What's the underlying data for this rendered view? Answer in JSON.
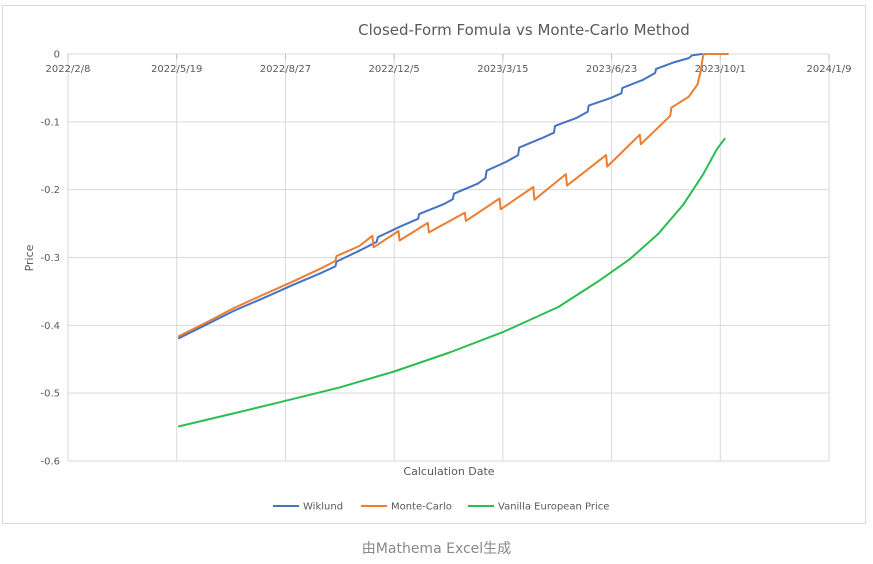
{
  "caption": "由Mathema Excel生成",
  "colors": {
    "Wiklund": "#4472c4",
    "Monte-Carlo": "#ed7d31",
    "Vanilla European Price": "#2bbd4f",
    "grid": "#d9d9d9",
    "text": "#595959"
  },
  "chart_data": {
    "type": "line",
    "title": "Closed-Form Fomula vs Monte-Carlo Method",
    "xlabel": "Calculation Date",
    "ylabel": "Price",
    "x_axis": {
      "type": "date",
      "ticks": [
        "2022/2/8",
        "2022/5/19",
        "2022/8/27",
        "2022/12/5",
        "2023/3/15",
        "2023/6/23",
        "2023/10/1",
        "2024/1/9"
      ],
      "range": [
        "2022/2/8",
        "2024/1/9"
      ],
      "position": "top"
    },
    "ylim": [
      -0.6,
      0
    ],
    "yticks": [
      0,
      -0.1,
      -0.2,
      -0.3,
      -0.4,
      -0.5,
      -0.6
    ],
    "grid": true,
    "legend": "bottom",
    "series": [
      {
        "name": "Wiklund",
        "points": [
          [
            "2022/5/21",
            -0.419
          ],
          [
            "2022/6/15",
            -0.399
          ],
          [
            "2022/7/10",
            -0.379
          ],
          [
            "2022/8/5",
            -0.361
          ],
          [
            "2022/9/2",
            -0.341
          ],
          [
            "2022/9/30",
            -0.322
          ],
          [
            "2022/10/12",
            -0.313
          ],
          [
            "2022/10/13",
            -0.306
          ],
          [
            "2022/11/3",
            -0.29
          ],
          [
            "2022/11/19",
            -0.277
          ],
          [
            "2022/11/20",
            -0.27
          ],
          [
            "2022/12/11",
            -0.254
          ],
          [
            "2022/12/27",
            -0.243
          ],
          [
            "2022/12/28",
            -0.236
          ],
          [
            "2023/1/20",
            -0.221
          ],
          [
            "2023/1/28",
            -0.214
          ],
          [
            "2023/1/29",
            -0.206
          ],
          [
            "2023/2/20",
            -0.191
          ],
          [
            "2023/2/27",
            -0.183
          ],
          [
            "2023/2/28",
            -0.172
          ],
          [
            "2023/3/18",
            -0.159
          ],
          [
            "2023/3/29",
            -0.149
          ],
          [
            "2023/3/30",
            -0.138
          ],
          [
            "2023/4/20",
            -0.124
          ],
          [
            "2023/5/1",
            -0.116
          ],
          [
            "2023/5/2",
            -0.106
          ],
          [
            "2023/5/22",
            -0.094
          ],
          [
            "2023/6/1",
            -0.085
          ],
          [
            "2023/6/2",
            -0.076
          ],
          [
            "2023/6/22",
            -0.065
          ],
          [
            "2023/7/2",
            -0.058
          ],
          [
            "2023/7/3",
            -0.05
          ],
          [
            "2023/7/22",
            -0.038
          ],
          [
            "2023/8/2",
            -0.028
          ],
          [
            "2023/8/3",
            -0.022
          ],
          [
            "2023/8/20",
            -0.012
          ],
          [
            "2023/9/2",
            -0.006
          ],
          [
            "2023/9/5",
            -0.002
          ],
          [
            "2023/9/14",
            0.0
          ]
        ]
      },
      {
        "name": "Monte-Carlo",
        "points": [
          [
            "2022/5/21",
            -0.416
          ],
          [
            "2022/6/15",
            -0.396
          ],
          [
            "2022/7/10",
            -0.375
          ],
          [
            "2022/8/5",
            -0.356
          ],
          [
            "2022/9/2",
            -0.336
          ],
          [
            "2022/9/30",
            -0.315
          ],
          [
            "2022/10/12",
            -0.305
          ],
          [
            "2022/10/13",
            -0.298
          ],
          [
            "2022/11/3",
            -0.283
          ],
          [
            "2022/11/15",
            -0.268
          ],
          [
            "2022/11/16",
            -0.285
          ],
          [
            "2022/12/9",
            -0.261
          ],
          [
            "2022/12/10",
            -0.275
          ],
          [
            "2023/1/5",
            -0.249
          ],
          [
            "2023/1/6",
            -0.263
          ],
          [
            "2023/2/8",
            -0.234
          ],
          [
            "2023/2/9",
            -0.246
          ],
          [
            "2023/3/12",
            -0.213
          ],
          [
            "2023/3/13",
            -0.229
          ],
          [
            "2023/4/12",
            -0.196
          ],
          [
            "2023/4/13",
            -0.215
          ],
          [
            "2023/5/12",
            -0.177
          ],
          [
            "2023/5/13",
            -0.194
          ],
          [
            "2023/6/18",
            -0.149
          ],
          [
            "2023/6/19",
            -0.166
          ],
          [
            "2023/7/19",
            -0.119
          ],
          [
            "2023/7/20",
            -0.133
          ],
          [
            "2023/8/16",
            -0.091
          ],
          [
            "2023/8/17",
            -0.079
          ],
          [
            "2023/9/2",
            -0.063
          ],
          [
            "2023/9/10",
            -0.045
          ],
          [
            "2023/9/13",
            -0.025
          ],
          [
            "2023/9/15",
            -0.004
          ],
          [
            "2023/9/16",
            0.0
          ],
          [
            "2023/10/8",
            0.0
          ]
        ]
      },
      {
        "name": "Vanilla European Price",
        "points": [
          [
            "2022/5/21",
            -0.549
          ],
          [
            "2022/7/10",
            -0.53
          ],
          [
            "2022/8/20",
            -0.514
          ],
          [
            "2022/10/15",
            -0.492
          ],
          [
            "2022/12/5",
            -0.468
          ],
          [
            "2023/1/25",
            -0.44
          ],
          [
            "2023/3/15",
            -0.41
          ],
          [
            "2023/5/5",
            -0.373
          ],
          [
            "2023/6/10",
            -0.336
          ],
          [
            "2023/7/10",
            -0.302
          ],
          [
            "2023/8/5",
            -0.265
          ],
          [
            "2023/8/28",
            -0.222
          ],
          [
            "2023/9/15",
            -0.178
          ],
          [
            "2023/9/28",
            -0.14
          ],
          [
            "2023/10/5",
            -0.125
          ]
        ]
      }
    ]
  }
}
